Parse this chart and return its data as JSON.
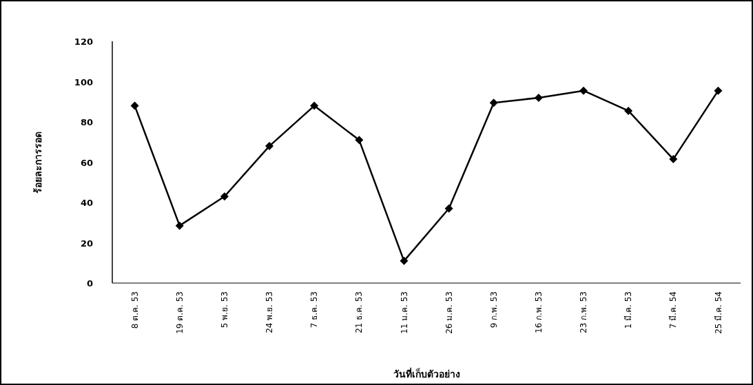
{
  "chart_data": {
    "type": "line",
    "xlabel": "วันที่เก็บตัวอย่าง",
    "ylabel": "ร้อยละการรอด",
    "categories": [
      "8 ต.ค. 53",
      "19 ต.ค. 53",
      "5 พ.ย. 53",
      "24 พ.ย. 53",
      "7 ธ.ค. 53",
      "21 ธ.ค. 53",
      "11 ม.ค. 53",
      "26 ม.ค. 53",
      "9 ก.พ. 53",
      "16 ก.พ. 53",
      "23 ก.พ. 53",
      "1 มี.ค. 53",
      "7 มี.ค. 54",
      "25 มี.ค. 54"
    ],
    "series": [
      {
        "color": "#000000",
        "values": [
          88,
          28.5,
          43,
          68,
          88,
          71,
          11,
          37,
          89.5,
          92,
          95.5,
          85.5,
          61.5,
          95.5
        ]
      }
    ],
    "ylim": [
      0,
      120
    ],
    "yticks": [
      0,
      20,
      40,
      60,
      80,
      100,
      120
    ],
    "marker": "diamond",
    "line_style": "solid"
  }
}
